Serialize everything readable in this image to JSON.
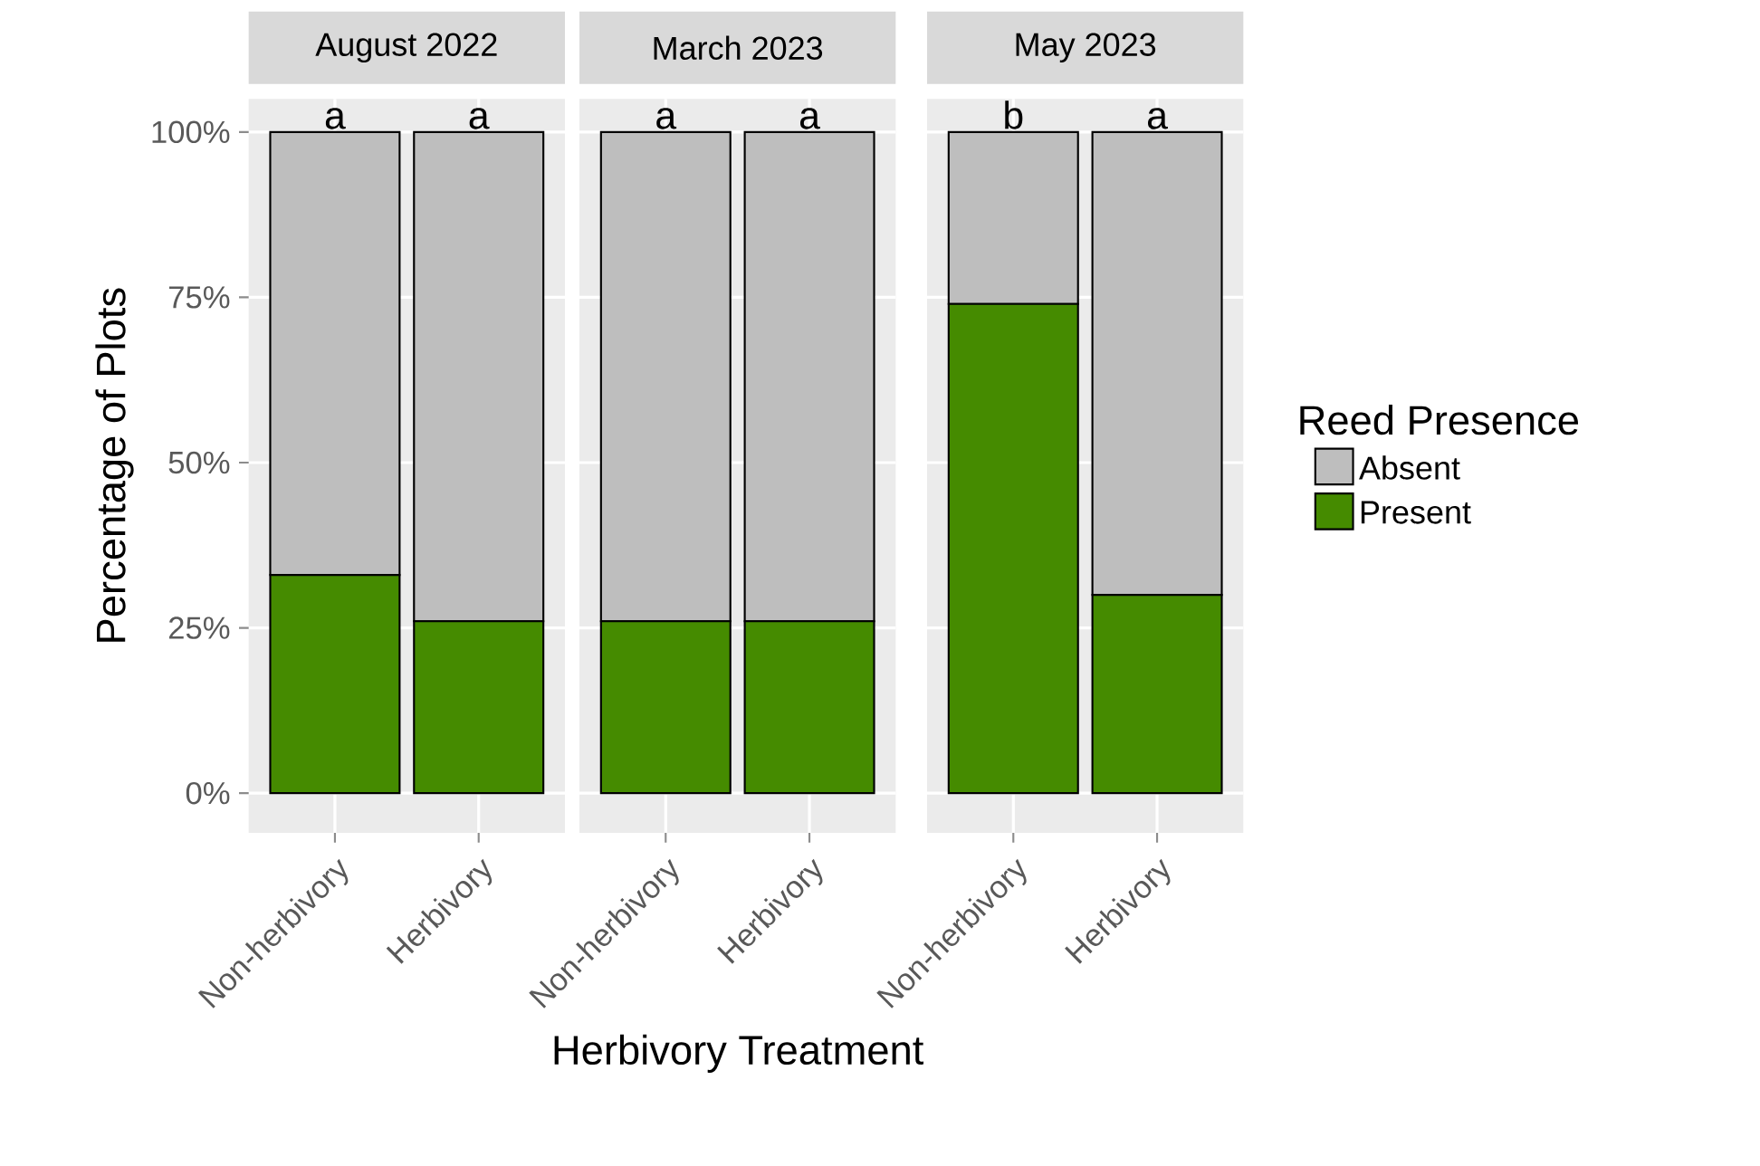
{
  "chart_data": [
    {
      "type": "bar",
      "title": "August 2022",
      "ylabel": "Percentage of Plots",
      "categories": [
        "Non-herbivory",
        "Herbivory"
      ],
      "stacked": true,
      "grid": true,
      "ylim": [
        -6,
        105
      ],
      "yticks": [
        {
          "value": 0,
          "label": "0%"
        },
        {
          "value": 25,
          "label": "25%"
        },
        {
          "value": 50,
          "label": "50%"
        },
        {
          "value": 75,
          "label": "75%"
        },
        {
          "value": 100,
          "label": "100%"
        }
      ],
      "series": [
        {
          "color": "#458b00",
          "values": [
            33,
            26
          ]
        },
        {
          "color": "#bebebe",
          "values": [
            67,
            74
          ]
        }
      ],
      "annotations": [
        {
          "text": "a",
          "x": "Non-herbivory",
          "y": 100
        },
        {
          "text": "a",
          "x": "Herbivory",
          "y": 100
        }
      ]
    },
    {
      "type": "bar",
      "title": "March 2023",
      "xlabel": "Herbivory Treatment",
      "categories": [
        "Non-herbivory",
        "Herbivory"
      ],
      "stacked": true,
      "grid": true,
      "ylim": [
        -6,
        105
      ],
      "tick_labels": "x",
      "yticks": [
        {
          "value": 0,
          "label": null
        },
        {
          "value": 25,
          "label": null
        },
        {
          "value": 50,
          "label": null
        },
        {
          "value": 75,
          "label": null
        },
        {
          "value": 100,
          "label": null
        }
      ],
      "series": [
        {
          "color": "#458b00",
          "values": [
            26,
            26
          ]
        },
        {
          "color": "#bebebe",
          "values": [
            74,
            74
          ]
        }
      ],
      "annotations": [
        {
          "text": "a",
          "x": "Non-herbivory",
          "y": 100
        },
        {
          "text": "a",
          "x": "Herbivory",
          "y": 100
        }
      ]
    },
    {
      "type": "bar",
      "title": "May 2023",
      "legend_title": "Reed Presence",
      "legend": "right",
      "categories": [
        "Non-herbivory",
        "Herbivory"
      ],
      "stacked": true,
      "grid": true,
      "ylim": [
        -6,
        105
      ],
      "tick_labels": "x",
      "yticks": [
        {
          "value": 0,
          "label": null
        },
        {
          "value": 25,
          "label": null
        },
        {
          "value": 50,
          "label": null
        },
        {
          "value": 75,
          "label": null
        },
        {
          "value": 100,
          "label": null
        }
      ],
      "series": [
        {
          "name": "Present",
          "color": "#458b00",
          "values": [
            74,
            30
          ]
        },
        {
          "name": "Absent",
          "color": "#bebebe",
          "values": [
            26,
            70
          ]
        }
      ],
      "annotations": [
        {
          "text": "b",
          "x": "Non-herbivory",
          "y": 100
        },
        {
          "text": "a",
          "x": "Herbivory",
          "y": 100
        }
      ]
    }
  ]
}
